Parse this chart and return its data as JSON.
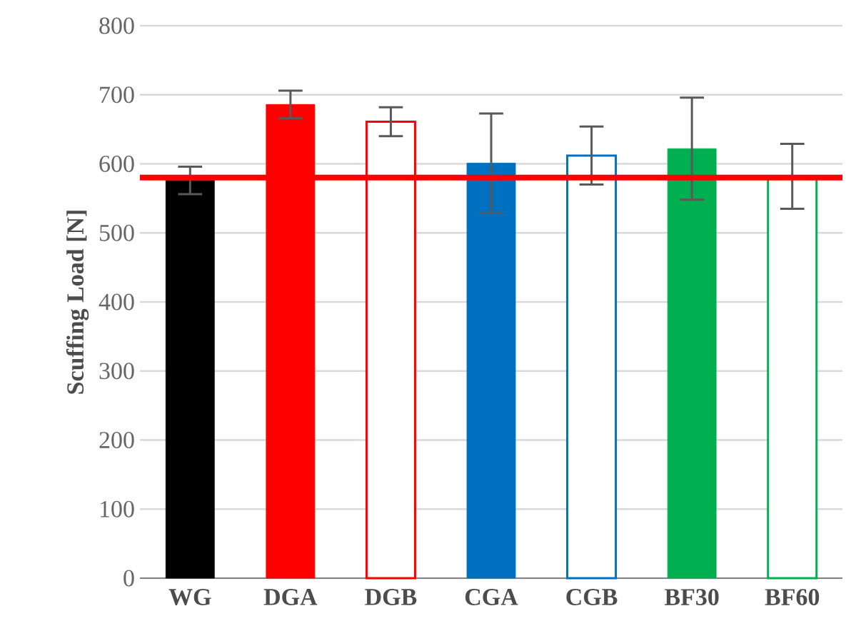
{
  "chart_data": {
    "type": "bar",
    "ylabel": "Scuffing Load [N]",
    "categories": [
      "WG",
      "DGA",
      "DGB",
      "CGA",
      "CGB",
      "BF30",
      "BF60"
    ],
    "series": [
      {
        "values": [
          576,
          686,
          null,
          601,
          null,
          622,
          null
        ],
        "colors": [
          "#000000",
          "#ff0000",
          null,
          "#0070c0",
          null,
          "#00b050",
          null
        ],
        "errors": [
          20,
          20,
          null,
          72,
          null,
          74,
          null
        ]
      },
      {
        "values": [
          null,
          null,
          661,
          null,
          612,
          null,
          582
        ],
        "colors": [
          null,
          null,
          "#ff0000",
          null,
          "#0070c0",
          null,
          "#00b050"
        ],
        "errors": [
          null,
          null,
          21,
          null,
          42,
          null,
          47
        ]
      }
    ],
    "stacked": false,
    "ylim": [
      0,
      800
    ],
    "yticks": [
      0,
      100,
      200,
      300,
      400,
      500,
      600,
      700,
      800
    ],
    "grid": "y",
    "ref_lines": [
      {
        "axis": "y",
        "value": 580,
        "color": "#ff0000"
      }
    ]
  }
}
